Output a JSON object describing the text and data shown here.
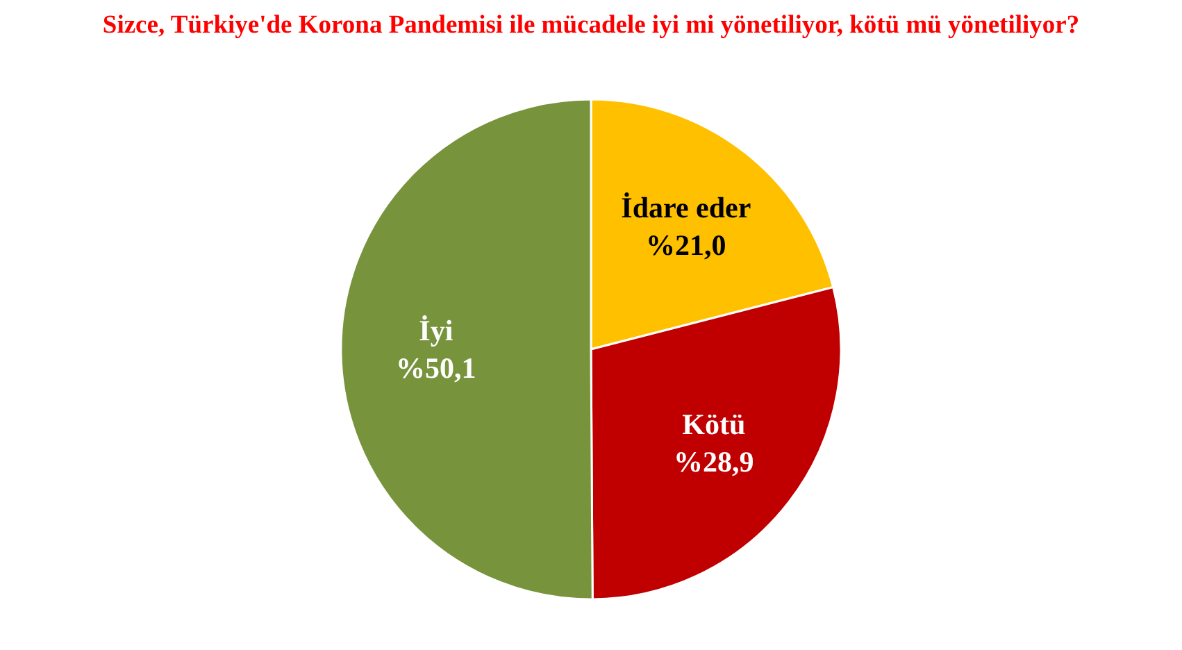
{
  "chart_data": {
    "type": "pie",
    "title": "Sizce, Türkiye'de Korona Pandemisi ile mücadele iyi mi yönetiliyor, kötü mü yönetiliyor?",
    "categories": [
      "İdare eder",
      "Kötü",
      "İyi"
    ],
    "values": [
      21.0,
      28.9,
      50.1
    ],
    "colors": [
      "#ffc000",
      "#c00000",
      "#77933c"
    ],
    "value_labels": [
      "%21,0",
      "%28,9",
      "%50,1"
    ]
  }
}
